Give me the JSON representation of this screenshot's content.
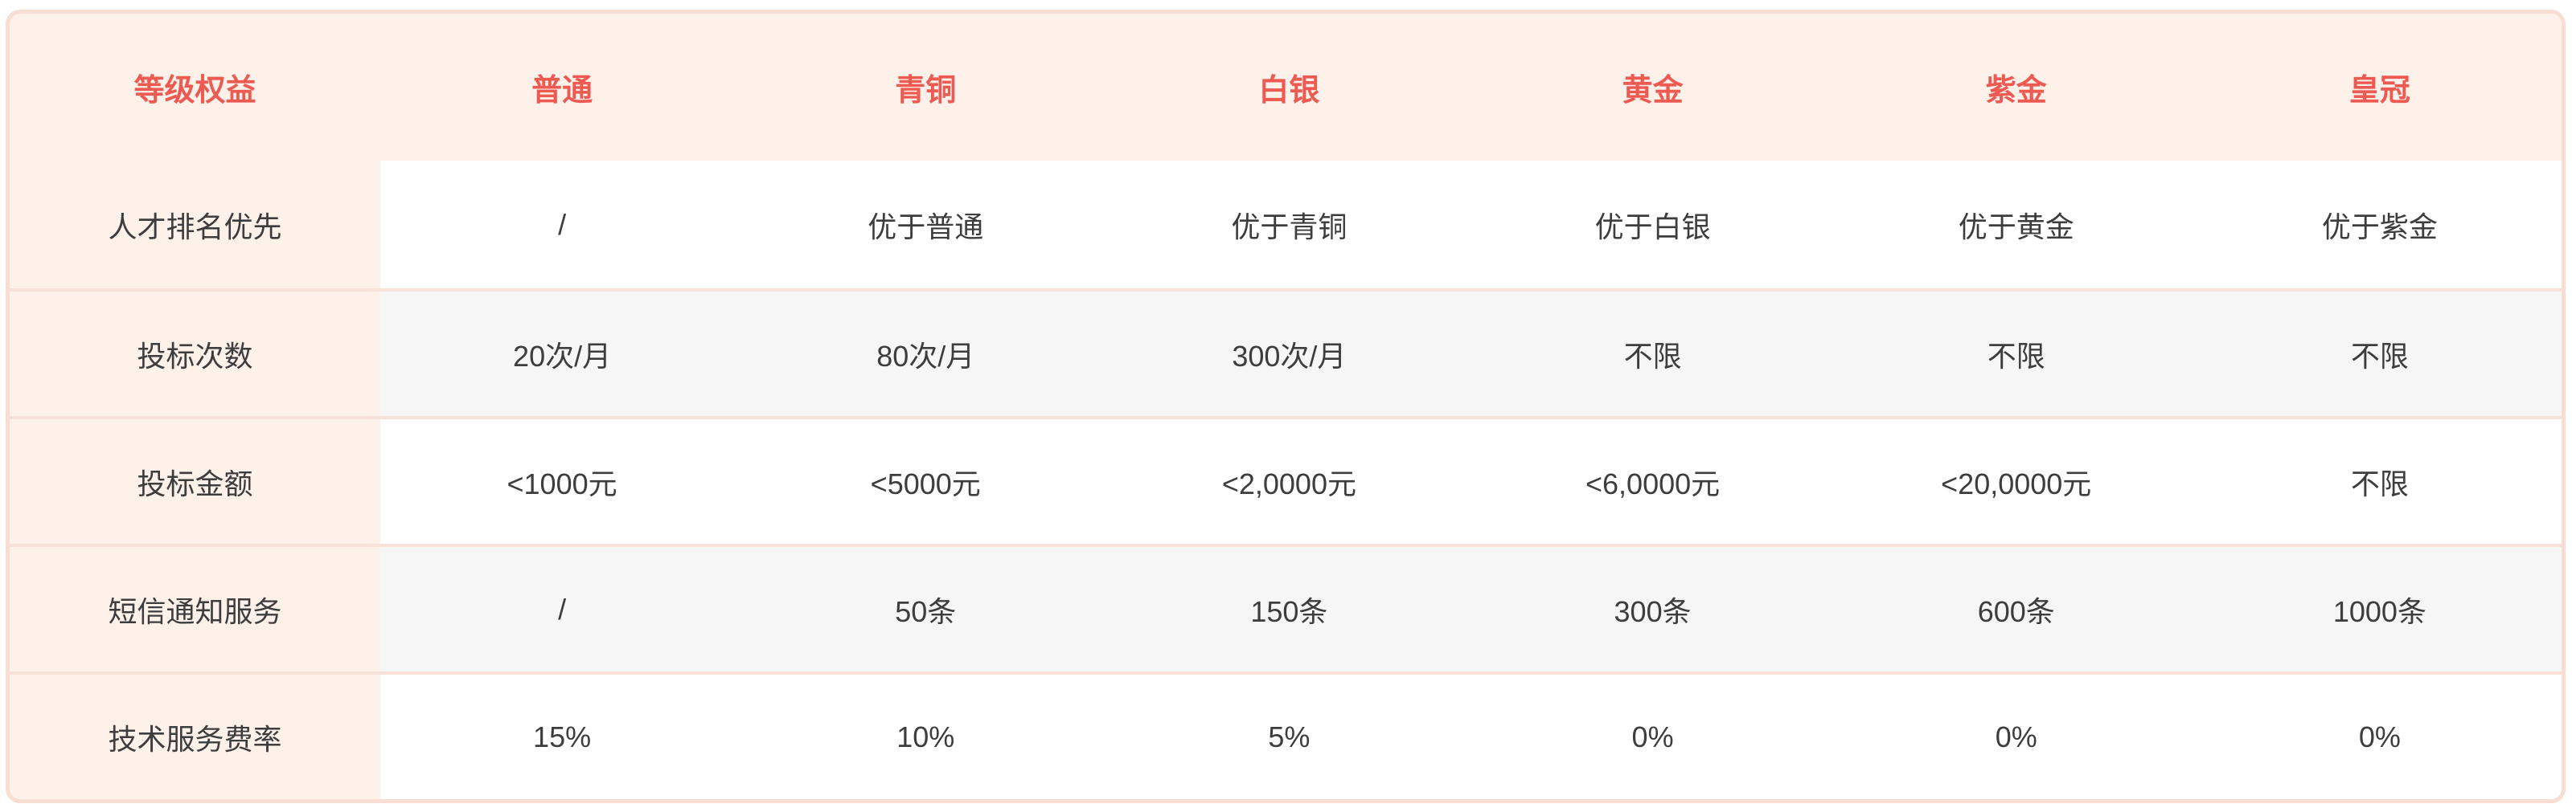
{
  "table": {
    "corner_label": "等级权益",
    "tiers": [
      "普通",
      "青铜",
      "白银",
      "黄金",
      "紫金",
      "皇冠"
    ],
    "rows": [
      {
        "label": "人才排名优先",
        "values": [
          "/",
          "优于普通",
          "优于青铜",
          "优于白银",
          "优于黄金",
          "优于紫金"
        ]
      },
      {
        "label": "投标次数",
        "values": [
          "20次/月",
          "80次/月",
          "300次/月",
          "不限",
          "不限",
          "不限"
        ]
      },
      {
        "label": "投标金额",
        "values": [
          "<1000元",
          "<5000元",
          "<2,0000元",
          "<6,0000元",
          "<20,0000元",
          "不限"
        ]
      },
      {
        "label": "短信通知服务",
        "values": [
          "/",
          "50条",
          "150条",
          "300条",
          "600条",
          "1000条"
        ]
      },
      {
        "label": "技术服务费率",
        "values": [
          "15%",
          "10%",
          "5%",
          "0%",
          "0%",
          "0%"
        ]
      }
    ]
  },
  "colors": {
    "accent_red": "#ec5a52",
    "card_background": "#fdf1ea",
    "card_border": "#f7ddd2",
    "row_alt_gray": "#f6f6f6",
    "divider": "#f8e2d7",
    "text_dark": "#3d3d3d",
    "page_background": "#ffffff"
  }
}
